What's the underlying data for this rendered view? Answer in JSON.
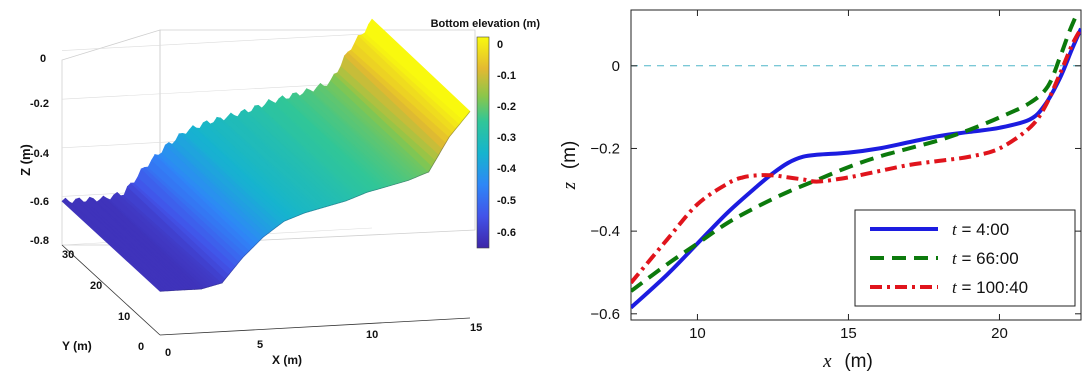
{
  "chart_data": [
    {
      "type": "surface3d",
      "colorbar_title": "Bottom elevation (m)",
      "colorbar_ticks": [
        "0",
        "-0.1",
        "-0.2",
        "-0.3",
        "-0.4",
        "-0.5",
        "-0.6"
      ],
      "colorbar_range": [
        -0.65,
        0.02
      ],
      "zlabel": "Z (m)",
      "ylabel": "Y (m)",
      "xlabel": "X (m)",
      "z_ticks": [
        "0",
        "-0.2",
        "-0.4",
        "-0.6",
        "-0.8"
      ],
      "y_ticks": [
        "30",
        "20",
        "10",
        "0"
      ],
      "x_ticks": [
        "0",
        "5",
        "10",
        "15"
      ],
      "xlim": [
        0,
        15
      ],
      "ylim": [
        0,
        33
      ],
      "zlim": [
        -0.8,
        0.1
      ],
      "profile": {
        "x": [
          0,
          1,
          2,
          3,
          4,
          5,
          6,
          7,
          8,
          9,
          10,
          11,
          12,
          13,
          14,
          15
        ],
        "z": [
          -0.62,
          -0.62,
          -0.62,
          -0.6,
          -0.5,
          -0.42,
          -0.36,
          -0.33,
          -0.31,
          -0.29,
          -0.26,
          -0.24,
          -0.22,
          -0.19,
          -0.05,
          0.05
        ]
      }
    },
    {
      "type": "line",
      "xlabel_italic": "x",
      "xlabel_unit": "(m)",
      "ylabel_italic": "z",
      "ylabel_unit": "(m)",
      "xlim": [
        7.8,
        22.7
      ],
      "ylim": [
        -0.615,
        0.135
      ],
      "x_ticks": [
        10,
        15,
        20
      ],
      "y_ticks": [
        0,
        -0.2,
        -0.4,
        -0.6
      ],
      "y_tick_labels": [
        "0",
        "−0.2",
        "−0.4",
        "−0.6"
      ],
      "reference_line_y": 0,
      "legend_position": "bottom-right",
      "series": [
        {
          "label_prefix": "t",
          "name": " =  4:00",
          "color": "#1c1ce0",
          "dash": "solid",
          "x": [
            7.8,
            9,
            10,
            11,
            12,
            12.5,
            13,
            13.5,
            14,
            15,
            16,
            17,
            18,
            19,
            20,
            21,
            21.5,
            22,
            22.4,
            22.7
          ],
          "y": [
            -0.585,
            -0.505,
            -0.43,
            -0.355,
            -0.29,
            -0.26,
            -0.235,
            -0.22,
            -0.215,
            -0.21,
            -0.2,
            -0.185,
            -0.17,
            -0.16,
            -0.15,
            -0.13,
            -0.095,
            -0.03,
            0.04,
            0.09
          ]
        },
        {
          "label_prefix": "t",
          "name": " = 66:00",
          "color": "#0c7a0c",
          "dash": "dashed",
          "x": [
            7.8,
            9,
            10,
            11,
            12,
            13,
            14,
            15,
            16,
            17,
            18,
            19,
            20,
            21,
            21.6,
            22,
            22.3,
            22.5
          ],
          "y": [
            -0.545,
            -0.48,
            -0.43,
            -0.38,
            -0.34,
            -0.305,
            -0.275,
            -0.245,
            -0.22,
            -0.2,
            -0.18,
            -0.155,
            -0.125,
            -0.09,
            -0.05,
            0.02,
            0.08,
            0.115
          ]
        },
        {
          "label_prefix": "t",
          "name": " = 100:40",
          "color": "#e0141c",
          "dash": "dashdot",
          "x": [
            7.8,
            9,
            10,
            11,
            11.5,
            12,
            12.5,
            13,
            13.5,
            14,
            15,
            16,
            17,
            18,
            19,
            20,
            21,
            21.5,
            22,
            22.4,
            22.7
          ],
          "y": [
            -0.525,
            -0.42,
            -0.335,
            -0.285,
            -0.27,
            -0.265,
            -0.265,
            -0.27,
            -0.275,
            -0.28,
            -0.27,
            -0.255,
            -0.24,
            -0.23,
            -0.22,
            -0.2,
            -0.15,
            -0.1,
            -0.02,
            0.05,
            0.09
          ]
        }
      ]
    }
  ]
}
